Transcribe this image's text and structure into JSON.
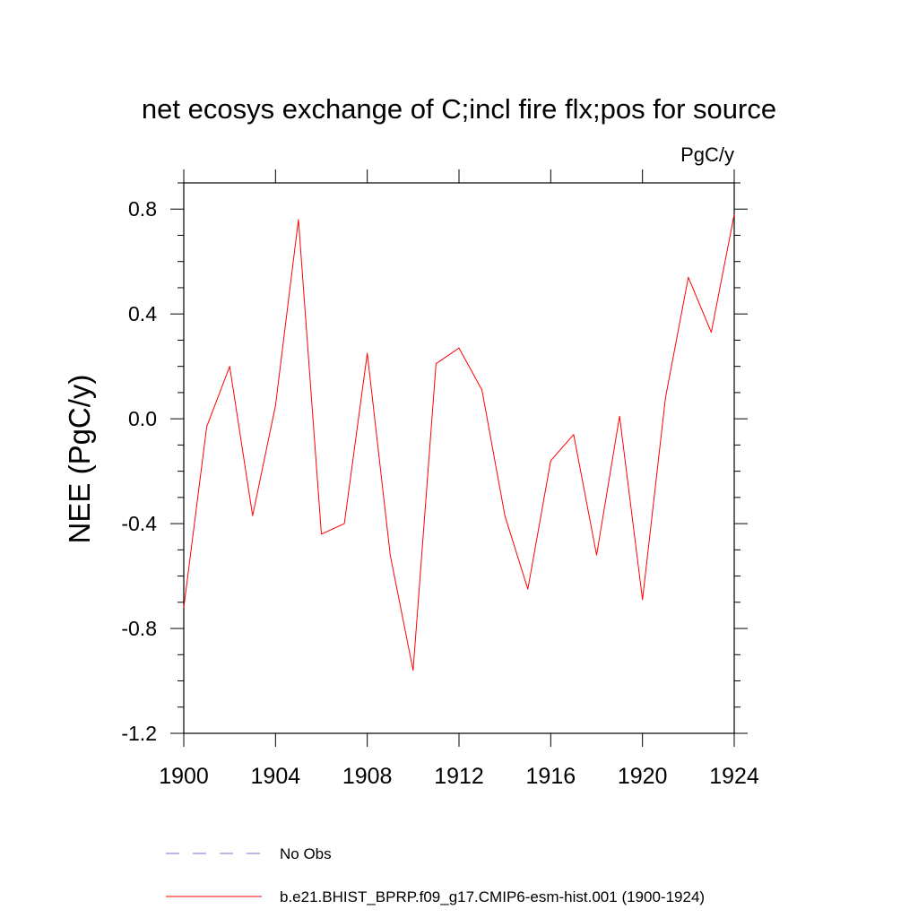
{
  "chart_data": {
    "type": "line",
    "title": "net ecosys exchange of C;incl fire flx;pos for source",
    "units": "PgC/y",
    "ylabel": "NEE  (PgC/y)",
    "xlabel": "",
    "xlim": [
      1900,
      1924
    ],
    "ylim": [
      -1.2,
      0.9
    ],
    "xticks": [
      1900,
      1904,
      1908,
      1912,
      1916,
      1920,
      1924
    ],
    "xtick_labels": [
      "1900",
      "1904",
      "1908",
      "1912",
      "1916",
      "1920",
      "1924"
    ],
    "yticks": [
      -1.2,
      -0.8,
      -0.4,
      0.0,
      0.4,
      0.8
    ],
    "ytick_labels": [
      "-1.2",
      "-0.8",
      "-0.4",
      "0.0",
      "0.4",
      "0.8"
    ],
    "grid": false,
    "legend_position": "bottom",
    "series": [
      {
        "name": "b.e21.BHIST_BPRP.f09_g17.CMIP6-esm-hist.001 (1900-1924)",
        "color": "#ff0000",
        "dash": "solid",
        "x": [
          1900,
          1901,
          1902,
          1903,
          1904,
          1905,
          1906,
          1907,
          1908,
          1909,
          1910,
          1911,
          1912,
          1913,
          1914,
          1915,
          1916,
          1917,
          1918,
          1919,
          1920,
          1921,
          1922,
          1923,
          1924
        ],
        "y": [
          -0.72,
          -0.03,
          0.2,
          -0.37,
          0.05,
          0.76,
          -0.44,
          -0.4,
          0.25,
          -0.52,
          -0.96,
          0.21,
          0.27,
          0.11,
          -0.37,
          -0.65,
          -0.16,
          -0.06,
          -0.52,
          0.01,
          -0.69,
          0.08,
          0.54,
          0.33,
          0.78
        ]
      }
    ],
    "legend": [
      {
        "label": "No Obs",
        "color": "#7b6fd0",
        "dash": "dashed"
      },
      {
        "label": "b.e21.BHIST_BPRP.f09_g17.CMIP6-esm-hist.001 (1900-1924)",
        "color": "#ff0000",
        "dash": "solid"
      }
    ]
  }
}
